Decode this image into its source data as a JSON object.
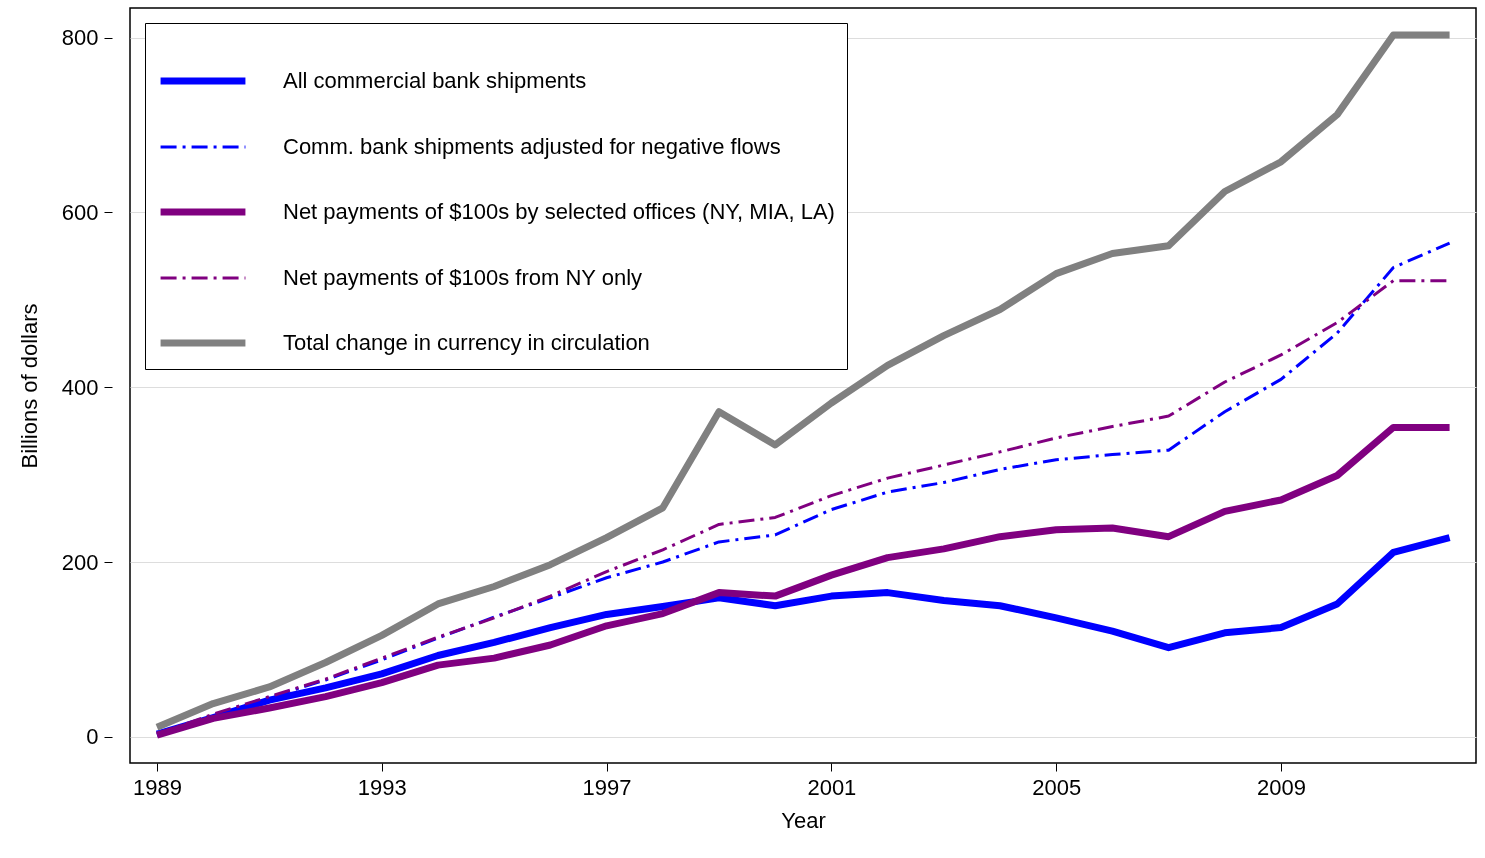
{
  "chart_data": {
    "type": "line",
    "xlabel": "Year",
    "ylabel": "Billions of dollars",
    "x": [
      1989,
      1990,
      1991,
      1992,
      1993,
      1994,
      1995,
      1996,
      1997,
      1998,
      1999,
      2000,
      2001,
      2002,
      2003,
      2004,
      2005,
      2006,
      2007,
      2008,
      2009,
      2010,
      2011,
      2012
    ],
    "xlim": [
      1988.52,
      2012.47
    ],
    "xticks": [
      1989,
      1993,
      1997,
      2001,
      2005,
      2009
    ],
    "ylim": [
      -30,
      834
    ],
    "yticks": [
      0,
      200,
      400,
      600,
      800
    ],
    "grid": "y",
    "legend": "top left",
    "marker": "none",
    "series": [
      {
        "name": "All commercial bank shipments",
        "color": "#0000ff",
        "line_style": "solid",
        "values": [
          3,
          22,
          42,
          56,
          72,
          93,
          108,
          125,
          140,
          149,
          159,
          150,
          161,
          165,
          156,
          150,
          136,
          121,
          102,
          119,
          125,
          152,
          211,
          228
        ]
      },
      {
        "name": "Comm. bank shipments adjusted for negative flows",
        "color": "#0000ff",
        "line_style": "dashed",
        "values": [
          2,
          24,
          45,
          65,
          88,
          113,
          137,
          159,
          182,
          200,
          223,
          231,
          260,
          280,
          291,
          306,
          317,
          323,
          328,
          372,
          409,
          462,
          537,
          565
        ]
      },
      {
        "name": "Net payments of $100s by selected offices (NY, MIA, LA)",
        "color": "#800080",
        "line_style": "solid",
        "values": [
          2,
          21,
          33,
          46,
          62,
          82,
          90,
          105,
          127,
          141,
          165,
          161,
          185,
          205,
          215,
          229,
          237,
          239,
          229,
          258,
          271,
          299,
          354,
          354
        ]
      },
      {
        "name": "Net payments of $100s from NY only",
        "color": "#800080",
        "line_style": "dashed",
        "values": [
          3,
          26,
          46,
          66,
          90,
          114,
          136,
          161,
          189,
          214,
          243,
          251,
          276,
          296,
          311,
          326,
          342,
          355,
          367,
          406,
          437,
          474,
          522,
          522
        ]
      },
      {
        "name": "Total change in currency in circulation",
        "color": "#808080",
        "line_style": "solid",
        "values": [
          11,
          38,
          57,
          85,
          116,
          152,
          172,
          197,
          228,
          262,
          372,
          334,
          382,
          425,
          459,
          489,
          530,
          553,
          562,
          624,
          658,
          712,
          803,
          803
        ]
      }
    ]
  }
}
